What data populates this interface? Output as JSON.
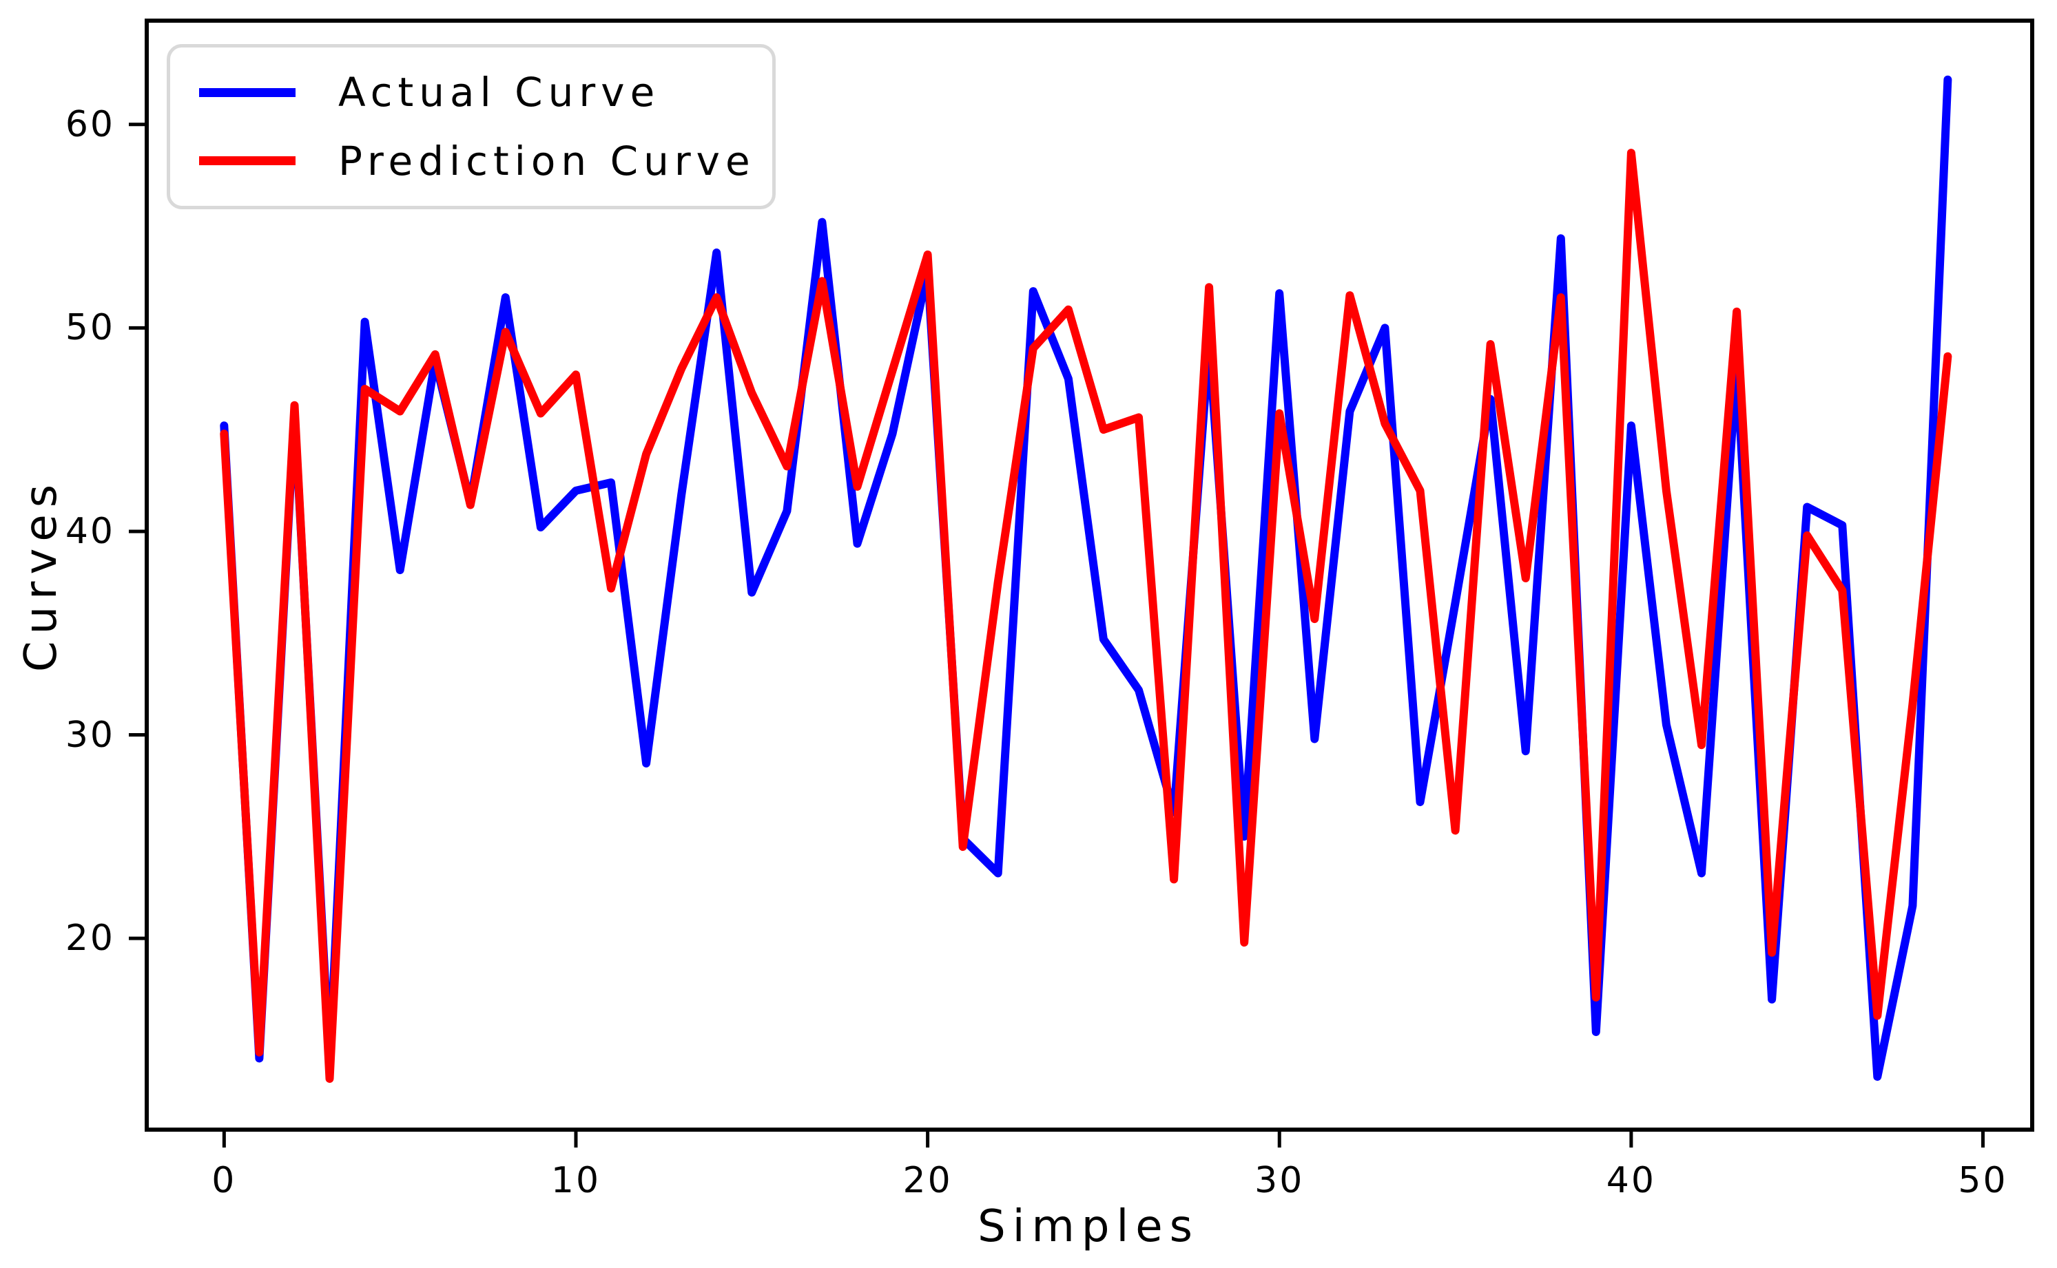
{
  "chart_data": {
    "type": "line",
    "title": "",
    "xlabel": "Simples",
    "ylabel": "Curves",
    "x": [
      0,
      1,
      2,
      3,
      4,
      5,
      6,
      7,
      8,
      9,
      10,
      11,
      12,
      13,
      14,
      15,
      16,
      17,
      18,
      19,
      20,
      21,
      22,
      23,
      24,
      25,
      26,
      27,
      28,
      29,
      30,
      31,
      32,
      33,
      34,
      35,
      36,
      37,
      38,
      39,
      40,
      41,
      42,
      43,
      44,
      45,
      46,
      47,
      48,
      49
    ],
    "series": [
      {
        "name": "Actual Curve",
        "color": "#0000ff",
        "values": [
          45.2,
          14.1,
          45.9,
          13.8,
          50.3,
          38.1,
          48.4,
          41.4,
          51.5,
          40.2,
          42.0,
          42.4,
          28.6,
          41.8,
          53.7,
          37.0,
          41.0,
          55.2,
          39.4,
          44.8,
          52.8,
          24.9,
          23.2,
          51.8,
          47.5,
          34.7,
          32.2,
          26.2,
          49.3,
          25.0,
          51.7,
          29.8,
          45.9,
          50.0,
          26.7,
          36.5,
          46.5,
          29.2,
          54.4,
          15.4,
          45.2,
          30.5,
          23.2,
          48.2,
          17.0,
          41.2,
          40.3,
          13.2,
          21.6,
          62.2
        ]
      },
      {
        "name": "Prediction Curve",
        "color": "#ff0000",
        "values": [
          44.8,
          14.4,
          46.2,
          13.1,
          47.0,
          45.9,
          48.7,
          41.3,
          49.8,
          45.8,
          47.7,
          37.2,
          43.8,
          48.0,
          51.5,
          46.8,
          43.2,
          52.3,
          42.2,
          47.9,
          53.6,
          24.5,
          37.5,
          49.0,
          50.9,
          45.0,
          45.6,
          22.9,
          52.0,
          19.8,
          45.8,
          35.7,
          51.6,
          45.3,
          42.0,
          25.3,
          49.2,
          37.7,
          51.5,
          17.1,
          58.6,
          42.0,
          29.5,
          50.8,
          19.3,
          39.8,
          37.1,
          16.2,
          31.5,
          48.6
        ]
      }
    ],
    "xticks": {
      "values": [
        0,
        10,
        20,
        30,
        40,
        50
      ],
      "labels": [
        "0",
        "10",
        "20",
        "30",
        "40",
        "50"
      ]
    },
    "yticks": {
      "values": [
        20,
        30,
        40,
        50,
        60
      ],
      "labels": [
        "20",
        "30",
        "40",
        "50",
        "60"
      ]
    },
    "xlim": [
      -2.2,
      51.4
    ],
    "ylim": [
      10.6,
      65.1
    ],
    "grid": false,
    "legend_position": "upper left",
    "line_width": 12,
    "axis_color": "#000000"
  }
}
